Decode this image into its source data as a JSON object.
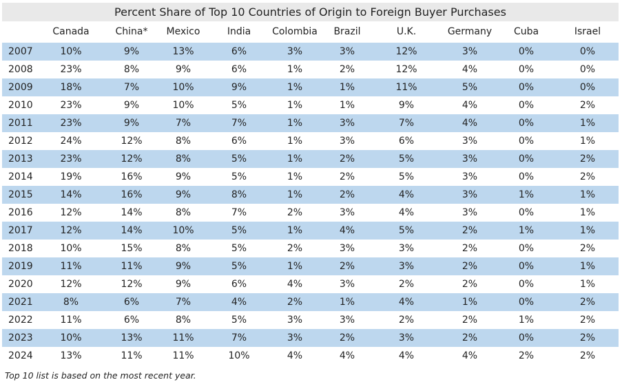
{
  "chart_data": {
    "type": "table",
    "title": "Percent Share of Top 10 Countries of Origin to Foreign Buyer Purchases",
    "columns": [
      "Canada",
      "China*",
      "Mexico",
      "India",
      "Colombia",
      "Brazil",
      "U.K.",
      "Germany",
      "Cuba",
      "Israel"
    ],
    "rows": [
      {
        "year": "2007",
        "values": [
          "10%",
          "9%",
          "13%",
          "6%",
          "3%",
          "3%",
          "12%",
          "3%",
          "0%",
          "0%"
        ]
      },
      {
        "year": "2008",
        "values": [
          "23%",
          "8%",
          "9%",
          "6%",
          "1%",
          "2%",
          "12%",
          "4%",
          "0%",
          "0%"
        ]
      },
      {
        "year": "2009",
        "values": [
          "18%",
          "7%",
          "10%",
          "9%",
          "1%",
          "1%",
          "11%",
          "5%",
          "0%",
          "0%"
        ]
      },
      {
        "year": "2010",
        "values": [
          "23%",
          "9%",
          "10%",
          "5%",
          "1%",
          "1%",
          "9%",
          "4%",
          "0%",
          "2%"
        ]
      },
      {
        "year": "2011",
        "values": [
          "23%",
          "9%",
          "7%",
          "7%",
          "1%",
          "3%",
          "7%",
          "4%",
          "0%",
          "1%"
        ]
      },
      {
        "year": "2012",
        "values": [
          "24%",
          "12%",
          "8%",
          "6%",
          "1%",
          "3%",
          "6%",
          "3%",
          "0%",
          "1%"
        ]
      },
      {
        "year": "2013",
        "values": [
          "23%",
          "12%",
          "8%",
          "5%",
          "1%",
          "2%",
          "5%",
          "3%",
          "0%",
          "2%"
        ]
      },
      {
        "year": "2014",
        "values": [
          "19%",
          "16%",
          "9%",
          "5%",
          "1%",
          "2%",
          "5%",
          "3%",
          "0%",
          "2%"
        ]
      },
      {
        "year": "2015",
        "values": [
          "14%",
          "16%",
          "9%",
          "8%",
          "1%",
          "2%",
          "4%",
          "3%",
          "1%",
          "1%"
        ]
      },
      {
        "year": "2016",
        "values": [
          "12%",
          "14%",
          "8%",
          "7%",
          "2%",
          "3%",
          "4%",
          "3%",
          "0%",
          "1%"
        ]
      },
      {
        "year": "2017",
        "values": [
          "12%",
          "14%",
          "10%",
          "5%",
          "1%",
          "4%",
          "5%",
          "2%",
          "1%",
          "1%"
        ]
      },
      {
        "year": "2018",
        "values": [
          "10%",
          "15%",
          "8%",
          "5%",
          "2%",
          "3%",
          "3%",
          "2%",
          "0%",
          "2%"
        ]
      },
      {
        "year": "2019",
        "values": [
          "11%",
          "11%",
          "9%",
          "5%",
          "1%",
          "2%",
          "3%",
          "2%",
          "0%",
          "1%"
        ]
      },
      {
        "year": "2020",
        "values": [
          "12%",
          "12%",
          "9%",
          "6%",
          "4%",
          "3%",
          "2%",
          "2%",
          "0%",
          "1%"
        ]
      },
      {
        "year": "2021",
        "values": [
          "8%",
          "6%",
          "7%",
          "4%",
          "2%",
          "1%",
          "4%",
          "1%",
          "0%",
          "2%"
        ]
      },
      {
        "year": "2022",
        "values": [
          "11%",
          "6%",
          "8%",
          "5%",
          "3%",
          "3%",
          "2%",
          "2%",
          "1%",
          "2%"
        ]
      },
      {
        "year": "2023",
        "values": [
          "10%",
          "13%",
          "11%",
          "7%",
          "3%",
          "2%",
          "3%",
          "2%",
          "0%",
          "2%"
        ]
      },
      {
        "year": "2024",
        "values": [
          "13%",
          "11%",
          "11%",
          "10%",
          "4%",
          "4%",
          "4%",
          "4%",
          "2%",
          "2%"
        ]
      }
    ],
    "footnote": "Top 10 list is based on the most recent year.",
    "colors": {
      "title_band": "#e9e9e9",
      "row_shade": "#bdd7ee",
      "text": "#222222"
    }
  }
}
